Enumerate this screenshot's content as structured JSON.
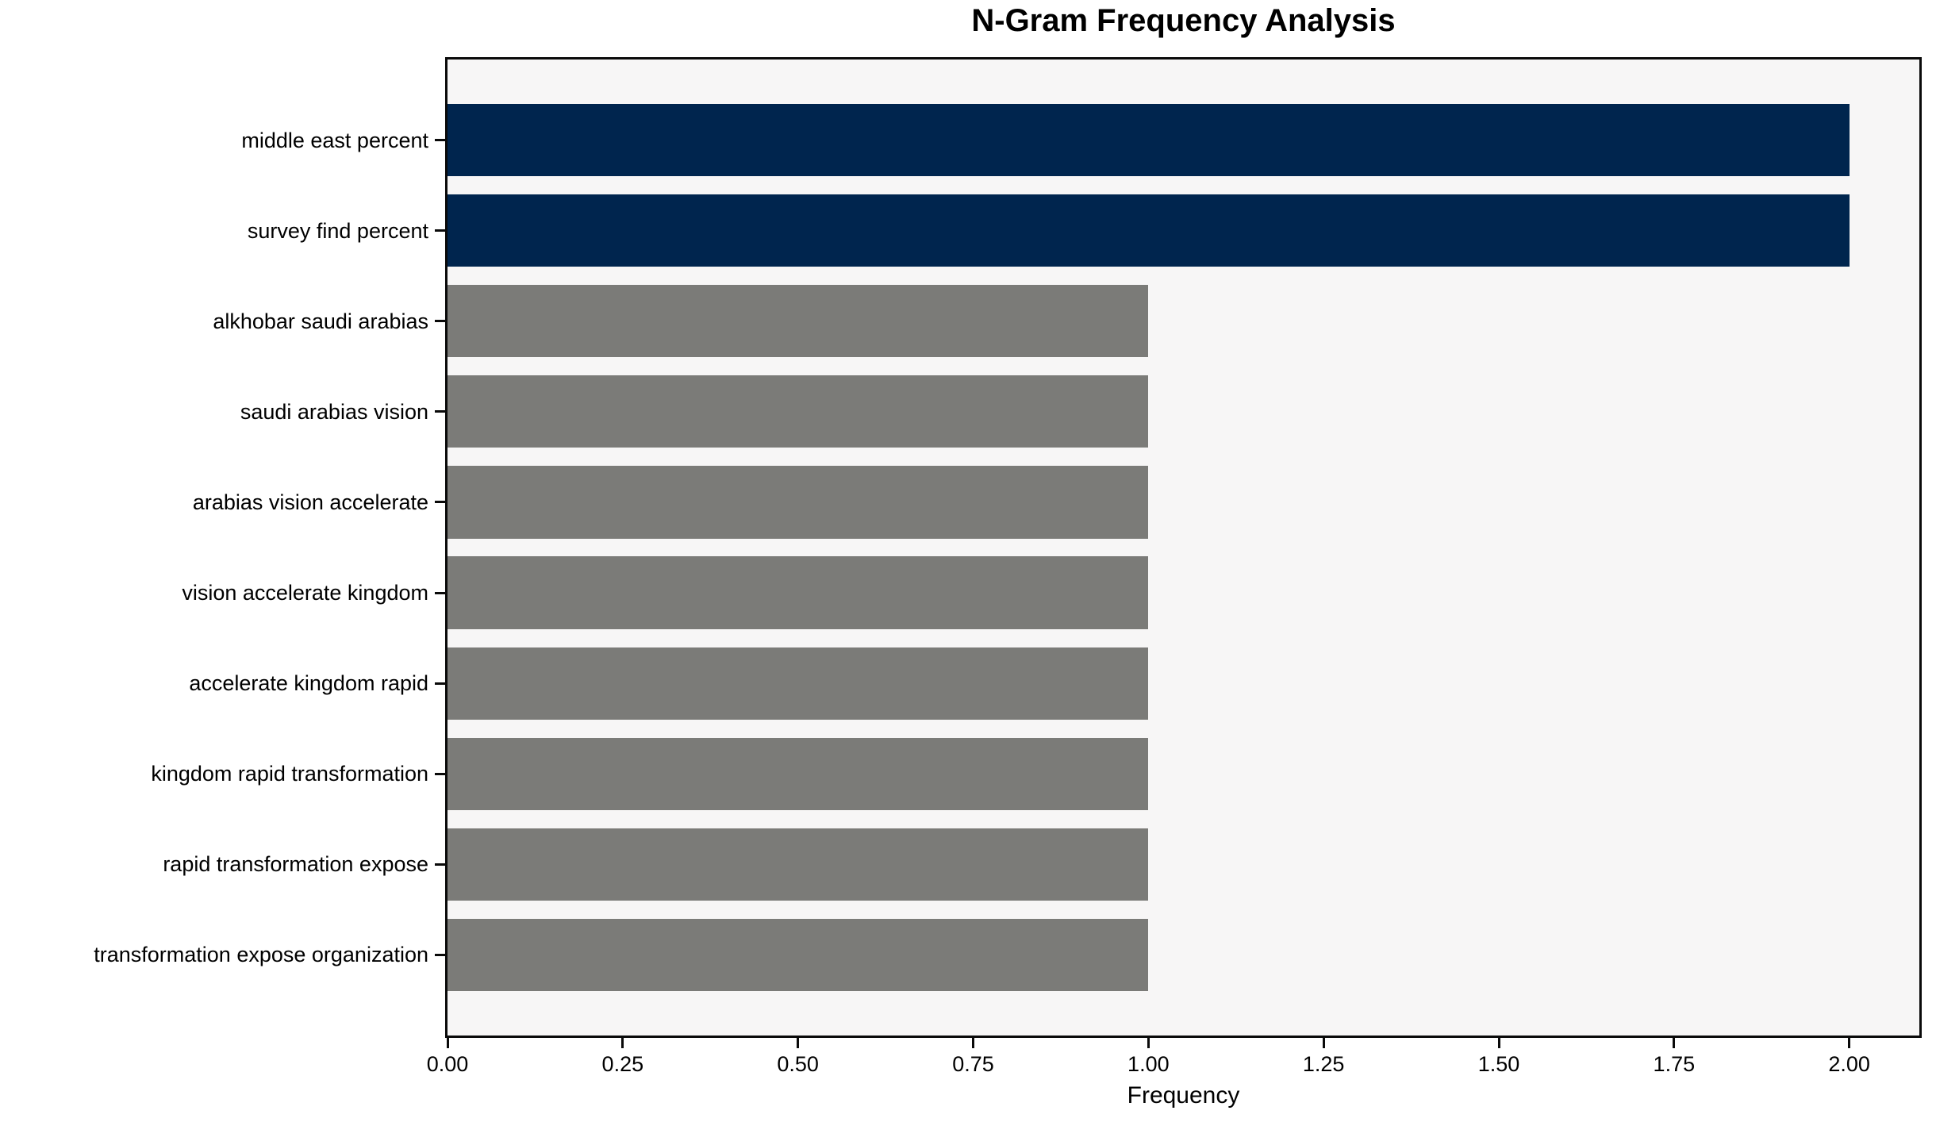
{
  "chart_data": {
    "type": "bar",
    "orientation": "horizontal",
    "title": "N-Gram Frequency Analysis",
    "xlabel": "Frequency",
    "ylabel": "",
    "categories": [
      "middle east percent",
      "survey find percent",
      "alkhobar saudi arabias",
      "saudi arabias vision",
      "arabias vision accelerate",
      "vision accelerate kingdom",
      "accelerate kingdom rapid",
      "kingdom rapid transformation",
      "rapid transformation expose",
      "transformation expose organization"
    ],
    "values": [
      2,
      2,
      1,
      1,
      1,
      1,
      1,
      1,
      1,
      1
    ],
    "bar_colors": [
      "#00254e",
      "#00254e",
      "#7b7b78",
      "#7b7b78",
      "#7b7b78",
      "#7b7b78",
      "#7b7b78",
      "#7b7b78",
      "#7b7b78",
      "#7b7b78"
    ],
    "xlim": [
      0,
      2.1
    ],
    "xticks": [
      0,
      0.25,
      0.5,
      0.75,
      1.0,
      1.25,
      1.5,
      1.75,
      2.0
    ],
    "xtick_labels": [
      "0.00",
      "0.25",
      "0.50",
      "0.75",
      "1.00",
      "1.25",
      "1.50",
      "1.75",
      "2.00"
    ],
    "grid": false,
    "legend": null,
    "colors": {
      "highlight": "#00254e",
      "default": "#7b7b78",
      "axes_background": "#f7f6f6",
      "figure_background": "#ffffff",
      "spine": "#0a0a0a",
      "text": "#000000"
    }
  }
}
